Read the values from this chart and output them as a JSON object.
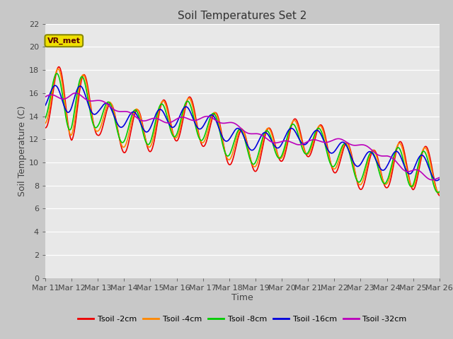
{
  "title": "Soil Temperatures Set 2",
  "xlabel": "Time",
  "ylabel": "Soil Temperature (C)",
  "ylim": [
    0,
    22
  ],
  "xlim": [
    0,
    15
  ],
  "annotation": "VR_met",
  "fig_bg": "#c8c8c8",
  "plot_bg": "#e8e8e8",
  "series_colors": {
    "Tsoil -2cm": "#ee0000",
    "Tsoil -4cm": "#ff8800",
    "Tsoil -8cm": "#00cc00",
    "Tsoil -16cm": "#0000dd",
    "Tsoil -32cm": "#bb00bb"
  },
  "xtick_labels": [
    "Mar 11",
    "Mar 12",
    "Mar 13",
    "Mar 14",
    "Mar 15",
    "Mar 16",
    "Mar 17",
    "Mar 18",
    "Mar 19",
    "Mar 20",
    "Mar 21",
    "Mar 22",
    "Mar 23",
    "Mar 24",
    "Mar 25",
    "Mar 26"
  ],
  "grid_color": "#ffffff",
  "lw": 1.2,
  "annot_fg": "#550000",
  "annot_bg": "#f0e000",
  "annot_edge": "#888800"
}
